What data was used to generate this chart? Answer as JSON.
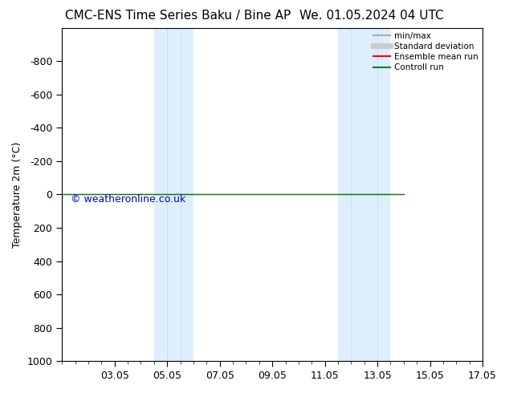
{
  "title_left": "CMC-ENS Time Series Baku / Bine AP",
  "title_right": "We. 01.05.2024 04 UTC",
  "ylabel": "Temperature 2m (°C)",
  "ylim_bottom": 1000,
  "ylim_top": -1000,
  "yticks": [
    -800,
    -600,
    -400,
    -200,
    0,
    200,
    400,
    600,
    800,
    1000
  ],
  "xlim_start": 1.0,
  "xlim_end": 17.0,
  "xtick_labels": [
    "03.05",
    "05.05",
    "07.05",
    "09.05",
    "11.05",
    "13.05",
    "15.05",
    "17.05"
  ],
  "xtick_positions": [
    3,
    5,
    7,
    9,
    11,
    13,
    15,
    17
  ],
  "shaded_bands": [
    {
      "x_start": 4.5,
      "x_end": 5.5
    },
    {
      "x_start": 5.5,
      "x_end": 6.0
    },
    {
      "x_start": 11.5,
      "x_end": 12.5
    },
    {
      "x_start": 12.5,
      "x_end": 13.5
    }
  ],
  "band_color": "#ddeeff",
  "control_run_x_start": 1.0,
  "control_run_x_end": 14.0,
  "control_run_y": 0,
  "control_run_color": "#008000",
  "ensemble_mean_color": "#ff0000",
  "watermark_text": "© weatheronline.co.uk",
  "watermark_color": "#0000cc",
  "legend_items": [
    {
      "label": "min/max",
      "color": "#aaaaaa",
      "lw": 1.5
    },
    {
      "label": "Standard deviation",
      "color": "#cccccc",
      "lw": 6
    },
    {
      "label": "Ensemble mean run",
      "color": "#ff0000",
      "lw": 1.5
    },
    {
      "label": "Controll run",
      "color": "#008000",
      "lw": 1.5
    }
  ],
  "background_color": "#ffffff",
  "title_fontsize": 11,
  "axis_fontsize": 9,
  "tick_fontsize": 9,
  "watermark_fontsize": 9
}
